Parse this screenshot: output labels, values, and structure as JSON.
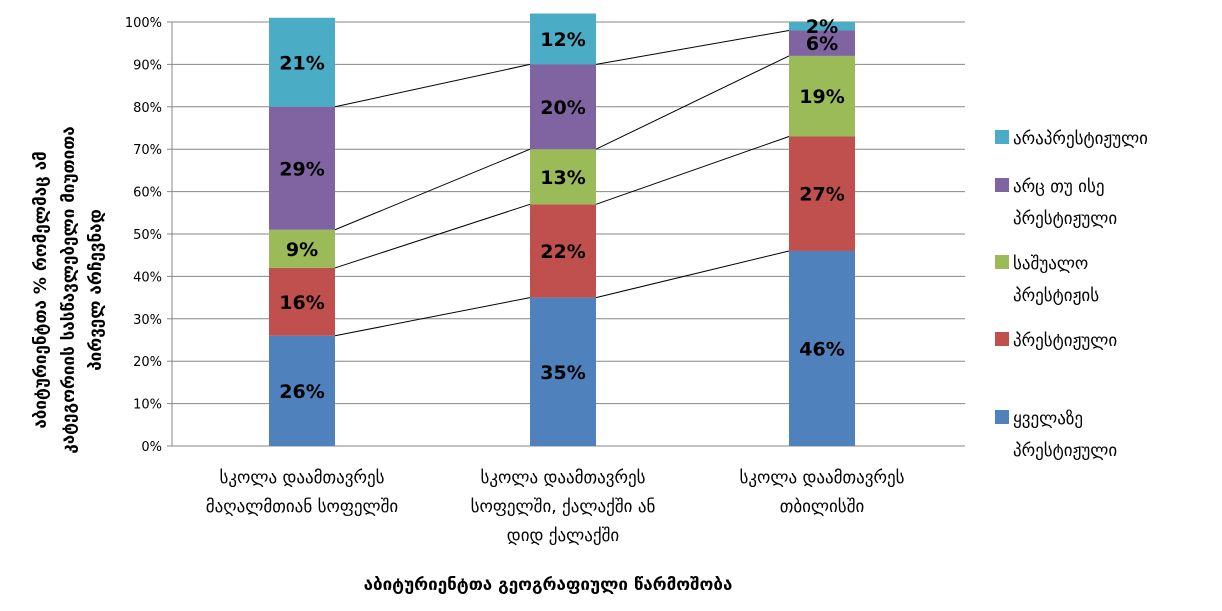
{
  "chart_data": {
    "type": "bar",
    "stacked": true,
    "percent": true,
    "ylim": [
      0,
      100
    ],
    "yticks": [
      "0%",
      "10%",
      "20%",
      "30%",
      "40%",
      "50%",
      "60%",
      "70%",
      "80%",
      "90%",
      "100%"
    ],
    "grid": true,
    "series_lines": true,
    "legend_position": "right",
    "xlabel": "აბიტურიენტთა გეოგრაფიული წარმოშობა",
    "ylabel_lines": [
      "აბიტურიენტთა % რომელმაც ამ",
      "კატეგორიის სასწავლებელი მიუთითა",
      "პირველ არჩევნად"
    ],
    "categories": [
      [
        "სკოლა დაამთავრეს",
        "მაღალმთიან სოფელში"
      ],
      [
        "სკოლა დაამთავრეს",
        "სოფელში, ქალაქში ან",
        "დიდ ქალაქში"
      ],
      [
        "სკოლა დაამთავრეს",
        "თბილისში"
      ]
    ],
    "series": [
      {
        "name": "ყველაზე პრესტიჟული",
        "legend_lines": [
          "ყველაზე",
          "პრესტიჟული"
        ],
        "color": "#4F81BD",
        "values": [
          26,
          35,
          46
        ],
        "labels": [
          "26%",
          "35%",
          "46%"
        ]
      },
      {
        "name": "პრესტიჟული",
        "legend_lines": [
          "პრესტიჟული"
        ],
        "color": "#C0504D",
        "values": [
          16,
          22,
          27
        ],
        "labels": [
          "16%",
          "22%",
          "27%"
        ]
      },
      {
        "name": "საშუალო პრესტიჟის",
        "legend_lines": [
          "საშუალო",
          "პრესტიჟის"
        ],
        "color": "#9BBB59",
        "values": [
          9,
          13,
          19
        ],
        "labels": [
          "9%",
          "13%",
          "19%"
        ]
      },
      {
        "name": "არც თუ ისე პრესტიჟული",
        "legend_lines": [
          "არც თუ ისე",
          "პრესტიჟული"
        ],
        "color": "#8064A2",
        "values": [
          29,
          20,
          6
        ],
        "labels": [
          "29%",
          "20%",
          "6%"
        ]
      },
      {
        "name": "არაპრესტიჟული",
        "legend_lines": [
          "არაპრესტიჟული"
        ],
        "color": "#4BACC6",
        "values": [
          21,
          12,
          2
        ],
        "labels": [
          "21%",
          "12%",
          "2%"
        ]
      }
    ]
  }
}
